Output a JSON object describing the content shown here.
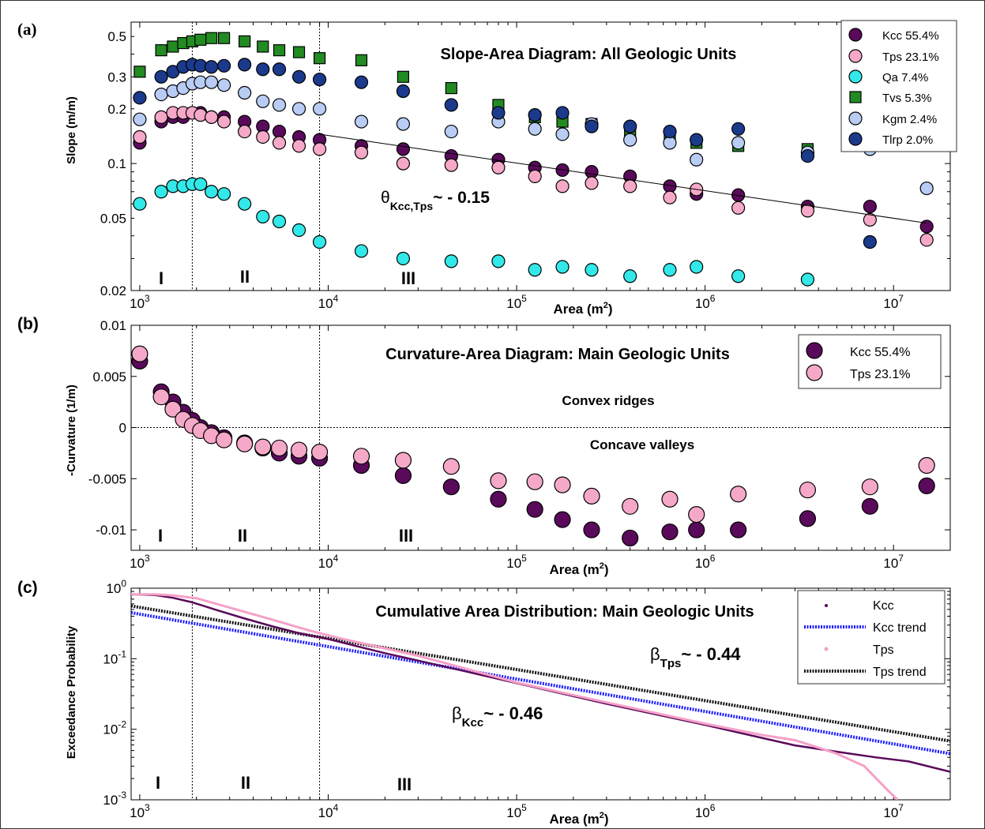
{
  "figure": {
    "panels": [
      {
        "label": "(a)",
        "title": "Slope-Area Diagram: All Geologic Units",
        "ylabel": "Slope (m/m)",
        "xlabel_main": "Area (m",
        "xlabel_sup": "2",
        "xlabel_end": ")",
        "regions": [
          "I",
          "II",
          "III"
        ],
        "annotation": {
          "main": "θ",
          "sub": "Kcc,Tps",
          "tail": "~ - 0.15"
        }
      },
      {
        "label": "(b)",
        "title": "Curvature-Area Diagram: Main Geologic Units",
        "ylabel": "-Curvature (1/m)",
        "xlabel_main": "Area (m",
        "xlabel_sup": "2",
        "xlabel_end": ")",
        "regions": [
          "I",
          "II",
          "III"
        ],
        "notes": [
          "Convex ridges",
          "Concave valleys"
        ]
      },
      {
        "label": "(c)",
        "title": "Cumulative Area Distribution: Main Geologic Units",
        "ylabel": "Exceedance Probability",
        "xlabel_main": "Area (m",
        "xlabel_sup": "2",
        "xlabel_end": ")",
        "regions": [
          "I",
          "II",
          "III"
        ],
        "beta_tps": {
          "main": "β",
          "sub": "Tps",
          "tail": "~ - 0.44"
        },
        "beta_kcc": {
          "main": "β",
          "sub": "Kcc",
          "tail": "~ - 0.46"
        }
      }
    ]
  },
  "chart_data": [
    {
      "type": "scatter",
      "title": "Slope-Area Diagram: All Geologic Units",
      "xlabel": "Area (m2)",
      "ylabel": "Slope (m/m)",
      "xscale": "log",
      "yscale": "log",
      "xlim": [
        900,
        20000000
      ],
      "ylim": [
        0.02,
        0.6
      ],
      "xticks": [
        {
          "v": 1000,
          "b": "10",
          "e": "3"
        },
        {
          "v": 10000,
          "b": "10",
          "e": "4"
        },
        {
          "v": 100000,
          "b": "10",
          "e": "5"
        },
        {
          "v": 1000000,
          "b": "10",
          "e": "6"
        },
        {
          "v": 10000000,
          "b": "10",
          "e": "7"
        }
      ],
      "yticks": [
        {
          "v": 0.02,
          "label": "0.02"
        },
        {
          "v": 0.05,
          "label": "0.05"
        },
        {
          "v": 0.1,
          "label": "0.1"
        },
        {
          "v": 0.2,
          "label": "0.2"
        },
        {
          "v": 0.3,
          "label": "0.3"
        },
        {
          "v": 0.5,
          "label": "0.5"
        }
      ],
      "vlines": [
        1900,
        9000
      ],
      "legend_position": "top-right",
      "series": [
        {
          "name": "Kcc 55.4%",
          "marker": "circle",
          "color": "#5a0a5a",
          "x": [
            1000,
            1300,
            1500,
            1700,
            1900,
            2100,
            2400,
            2800,
            3600,
            4500,
            5500,
            7000,
            9000,
            15000,
            25000,
            45000,
            80000,
            125000,
            175000,
            250000,
            400000,
            650000,
            900000,
            1500000,
            3500000,
            7500000,
            15000000
          ],
          "y": [
            0.13,
            0.17,
            0.18,
            0.18,
            0.19,
            0.19,
            0.18,
            0.18,
            0.17,
            0.16,
            0.15,
            0.14,
            0.135,
            0.125,
            0.12,
            0.11,
            0.105,
            0.095,
            0.092,
            0.09,
            0.085,
            0.075,
            0.068,
            0.067,
            0.058,
            0.058,
            0.045
          ]
        },
        {
          "name": "Tps 23.1%",
          "marker": "circle",
          "color": "#f5a8c8",
          "x": [
            1000,
            1300,
            1500,
            1700,
            1900,
            2100,
            2400,
            2800,
            3600,
            4500,
            5500,
            7000,
            9000,
            15000,
            25000,
            45000,
            80000,
            125000,
            175000,
            250000,
            400000,
            650000,
            900000,
            1500000,
            3500000,
            7500000,
            15000000
          ],
          "y": [
            0.14,
            0.18,
            0.19,
            0.19,
            0.19,
            0.185,
            0.18,
            0.17,
            0.15,
            0.14,
            0.13,
            0.125,
            0.12,
            0.115,
            0.1,
            0.098,
            0.095,
            0.085,
            0.075,
            0.078,
            0.075,
            0.065,
            0.072,
            0.057,
            0.055,
            0.049,
            0.038
          ]
        },
        {
          "name": "Qa 7.4%",
          "marker": "circle",
          "color": "#33e8e8",
          "x": [
            1000,
            1300,
            1500,
            1700,
            1900,
            2100,
            2400,
            2800,
            3600,
            4500,
            5500,
            7000,
            9000,
            15000,
            25000,
            45000,
            80000,
            125000,
            175000,
            250000,
            400000,
            650000,
            900000,
            1500000,
            3500000
          ],
          "y": [
            0.06,
            0.07,
            0.075,
            0.075,
            0.077,
            0.077,
            0.07,
            0.068,
            0.06,
            0.051,
            0.048,
            0.043,
            0.037,
            0.033,
            0.03,
            0.029,
            0.029,
            0.026,
            0.027,
            0.026,
            0.024,
            0.026,
            0.027,
            0.024,
            0.023
          ]
        },
        {
          "name": "Tvs 5.3%",
          "marker": "square",
          "color": "#228b22",
          "x": [
            1000,
            1300,
            1500,
            1700,
            1900,
            2100,
            2400,
            2800,
            3600,
            4500,
            5500,
            7000,
            9000,
            15000,
            25000,
            45000,
            80000,
            125000,
            175000,
            250000,
            400000,
            650000,
            900000,
            1500000,
            3500000
          ],
          "y": [
            0.32,
            0.42,
            0.44,
            0.46,
            0.47,
            0.48,
            0.49,
            0.49,
            0.47,
            0.44,
            0.42,
            0.41,
            0.38,
            0.37,
            0.3,
            0.26,
            0.21,
            0.18,
            0.17,
            0.165,
            0.15,
            0.14,
            0.13,
            0.125,
            0.12
          ]
        },
        {
          "name": "Kgm 2.4%",
          "marker": "circle",
          "color": "#b8ccf4",
          "x": [
            1000,
            1300,
            1500,
            1700,
            1900,
            2100,
            2400,
            2800,
            3600,
            4500,
            5500,
            7000,
            9000,
            15000,
            25000,
            45000,
            80000,
            125000,
            175000,
            250000,
            400000,
            650000,
            900000,
            1500000,
            3500000,
            7500000,
            15000000
          ],
          "y": [
            0.175,
            0.24,
            0.25,
            0.26,
            0.275,
            0.28,
            0.28,
            0.27,
            0.245,
            0.22,
            0.21,
            0.2,
            0.2,
            0.17,
            0.165,
            0.15,
            0.17,
            0.155,
            0.145,
            0.165,
            0.135,
            0.13,
            0.105,
            0.13,
            0.115,
            0.12,
            0.073
          ]
        },
        {
          "name": "Tlrp 2.0%",
          "marker": "circle",
          "color": "#1c3a8c",
          "x": [
            1000,
            1300,
            1500,
            1700,
            1900,
            2100,
            2400,
            2800,
            3600,
            4500,
            5500,
            7000,
            9000,
            15000,
            25000,
            45000,
            80000,
            125000,
            175000,
            250000,
            400000,
            650000,
            900000,
            1500000,
            3500000,
            7500000
          ],
          "y": [
            0.23,
            0.3,
            0.32,
            0.34,
            0.35,
            0.345,
            0.34,
            0.345,
            0.35,
            0.33,
            0.33,
            0.3,
            0.29,
            0.28,
            0.25,
            0.21,
            0.19,
            0.185,
            0.19,
            0.16,
            0.16,
            0.15,
            0.135,
            0.155,
            0.11,
            0.037
          ]
        }
      ],
      "trend": {
        "x": [
          9000,
          15000000
        ],
        "y": [
          0.145,
          0.047
        ]
      }
    },
    {
      "type": "scatter",
      "title": "Curvature-Area Diagram: Main Geologic Units",
      "xlabel": "Area (m2)",
      "ylabel": "-Curvature (1/m)",
      "xscale": "log",
      "yscale": "linear",
      "xlim": [
        900,
        20000000
      ],
      "ylim": [
        -0.012,
        0.01
      ],
      "xticks": [
        {
          "v": 1000,
          "b": "10",
          "e": "3"
        },
        {
          "v": 10000,
          "b": "10",
          "e": "4"
        },
        {
          "v": 100000,
          "b": "10",
          "e": "5"
        },
        {
          "v": 1000000,
          "b": "10",
          "e": "6"
        },
        {
          "v": 10000000,
          "b": "10",
          "e": "7"
        }
      ],
      "yticks": [
        {
          "v": -0.01,
          "label": "-0.01"
        },
        {
          "v": -0.005,
          "label": "-0.005"
        },
        {
          "v": 0,
          "label": "0"
        },
        {
          "v": 0.005,
          "label": "0.005"
        },
        {
          "v": 0.01,
          "label": "0.01"
        }
      ],
      "hline": 0,
      "vlines": [
        1900,
        9000
      ],
      "legend_position": "top-right",
      "series": [
        {
          "name": "Kcc 55.4%",
          "marker": "circle",
          "color": "#5a0a5a",
          "x": [
            1000,
            1300,
            1500,
            1700,
            1900,
            2100,
            2400,
            2800,
            3600,
            4500,
            5500,
            7000,
            9000,
            15000,
            25000,
            45000,
            80000,
            125000,
            175000,
            250000,
            400000,
            650000,
            900000,
            1500000,
            3500000,
            7500000,
            15000000
          ],
          "y": [
            0.0065,
            0.0035,
            0.0025,
            0.0015,
            0.0007,
            0.0,
            -0.0005,
            -0.001,
            -0.0015,
            -0.002,
            -0.0025,
            -0.0028,
            -0.003,
            -0.0037,
            -0.0047,
            -0.0058,
            -0.007,
            -0.008,
            -0.009,
            -0.01,
            -0.0108,
            -0.0102,
            -0.01,
            -0.01,
            -0.0089,
            -0.0077,
            -0.0057
          ]
        },
        {
          "name": "Tps 23.1%",
          "marker": "circle",
          "color": "#f5a8c8",
          "x": [
            1000,
            1300,
            1500,
            1700,
            1900,
            2100,
            2400,
            2800,
            3600,
            4500,
            5500,
            7000,
            9000,
            15000,
            25000,
            45000,
            80000,
            125000,
            175000,
            250000,
            400000,
            650000,
            900000,
            1500000,
            3500000,
            7500000,
            15000000
          ],
          "y": [
            0.0072,
            0.003,
            0.0018,
            0.0008,
            0.0002,
            -0.0003,
            -0.0008,
            -0.0012,
            -0.0016,
            -0.0019,
            -0.002,
            -0.0022,
            -0.0024,
            -0.0028,
            -0.0032,
            -0.0038,
            -0.0052,
            -0.0053,
            -0.0056,
            -0.0067,
            -0.0077,
            -0.007,
            -0.0085,
            -0.0065,
            -0.0061,
            -0.0058,
            -0.0037
          ]
        }
      ]
    },
    {
      "type": "line",
      "title": "Cumulative Area Distribution: Main Geologic Units",
      "xlabel": "Area (m2)",
      "ylabel": "Exceedance Probability",
      "xscale": "log",
      "yscale": "log",
      "xlim": [
        900,
        20000000
      ],
      "ylim": [
        0.001,
        1
      ],
      "xticks": [
        {
          "v": 1000,
          "b": "10",
          "e": "3"
        },
        {
          "v": 10000,
          "b": "10",
          "e": "4"
        },
        {
          "v": 100000,
          "b": "10",
          "e": "5"
        },
        {
          "v": 1000000,
          "b": "10",
          "e": "6"
        },
        {
          "v": 10000000,
          "b": "10",
          "e": "7"
        }
      ],
      "yticks": [
        {
          "v": 0.001,
          "b": "10",
          "e": "-3"
        },
        {
          "v": 0.01,
          "b": "10",
          "e": "-2"
        },
        {
          "v": 0.1,
          "b": "10",
          "e": "-1"
        },
        {
          "v": 1,
          "b": "10",
          "e": "0"
        }
      ],
      "vlines": [
        1900,
        9000
      ],
      "legend_position": "top-right",
      "series": [
        {
          "name": "Kcc",
          "style": "solid",
          "width": 2.5,
          "color": "#5a0a5a",
          "x": [
            900,
            1200,
            1500,
            1900,
            2500,
            3500,
            5000,
            7000,
            10000,
            20000,
            50000,
            100000,
            300000,
            1000000,
            3000000,
            5000000,
            8000000,
            12000000,
            20000000
          ],
          "y": [
            0.82,
            0.8,
            0.73,
            0.63,
            0.5,
            0.38,
            0.29,
            0.23,
            0.19,
            0.12,
            0.069,
            0.045,
            0.023,
            0.0115,
            0.0059,
            0.0048,
            0.004,
            0.0035,
            0.0025
          ]
        },
        {
          "name": "Kcc trend",
          "style": "dotted",
          "width": 4,
          "color": "#1a1aff",
          "x": [
            900,
            20000000
          ],
          "y": [
            0.45,
            0.0045
          ]
        },
        {
          "name": "Tps",
          "style": "solid",
          "width": 3,
          "color": "#f5a0c8",
          "x": [
            900,
            1200,
            1500,
            2000,
            3000,
            5000,
            8000,
            12000,
            30000,
            100000,
            300000,
            1000000,
            2000000,
            3000000,
            4000000,
            5000000,
            7000000,
            9000000,
            10500000
          ],
          "y": [
            0.82,
            0.82,
            0.79,
            0.72,
            0.53,
            0.36,
            0.25,
            0.19,
            0.11,
            0.046,
            0.024,
            0.012,
            0.0083,
            0.007,
            0.0055,
            0.0045,
            0.003,
            0.0015,
            0.001
          ]
        },
        {
          "name": "Tps trend",
          "style": "dotted",
          "width": 4,
          "color": "#111111",
          "x": [
            900,
            20000000
          ],
          "y": [
            0.56,
            0.0068
          ]
        }
      ]
    }
  ]
}
